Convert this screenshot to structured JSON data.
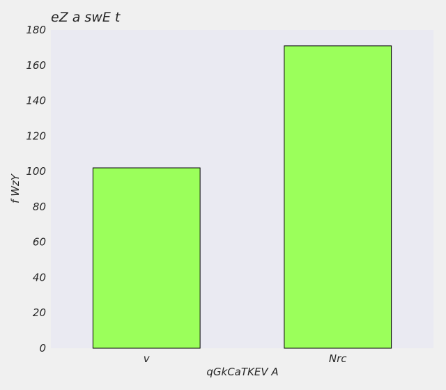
{
  "chart_data": {
    "type": "bar",
    "title": "eZ a swE  t",
    "xlabel": "qGkCaTKEV A",
    "ylabel": "f WzY",
    "categories": [
      "v",
      "Nrc"
    ],
    "values": [
      102,
      171
    ],
    "ylim": [
      0,
      180
    ],
    "yticks": [
      0,
      20,
      40,
      60,
      80,
      100,
      120,
      140,
      160,
      180
    ],
    "grid": false,
    "colors": {
      "bar_fill": "#9bff5b",
      "bar_edge": "#000000",
      "plot_background": "#eaeaf2",
      "figure_background": "#f0f0f0",
      "text": "#262626"
    }
  }
}
